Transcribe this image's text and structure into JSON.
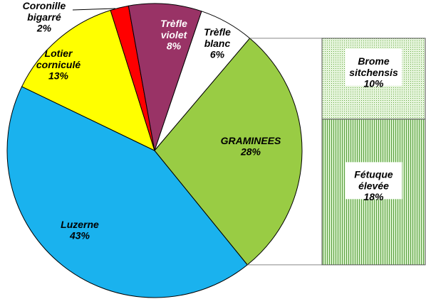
{
  "chart_data": {
    "type": "pie-of-bar",
    "categories": [
      "Luzerne",
      "Lotier corniculé",
      "Coronille bigarré",
      "Trèfle violet",
      "Trèfle blanc",
      "GRAMINEES"
    ],
    "values": [
      43,
      13,
      2,
      8,
      6,
      28
    ],
    "value_labels": [
      "43%",
      "13%",
      "2%",
      "8%",
      "6%",
      "28%"
    ],
    "colors": [
      "#1ab2ee",
      "#ffff00",
      "#ff0000",
      "#993366",
      "#ffffff",
      "#99cc44"
    ],
    "bar": {
      "categories": [
        "Brome sitchensis",
        "Fétuque élevée"
      ],
      "values": [
        10,
        18
      ],
      "value_labels": [
        "10%",
        "18%"
      ]
    }
  }
}
